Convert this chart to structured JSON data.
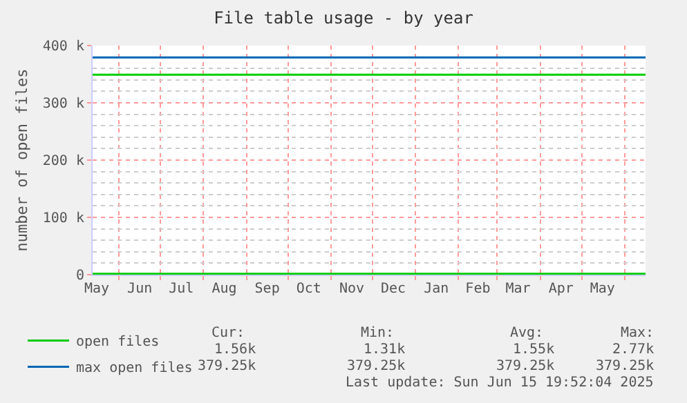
{
  "chart_data": {
    "type": "line",
    "title": "File table usage - by year",
    "ylabel": "number of open files",
    "xlim": [
      "2024-05-13",
      "2025-06-16"
    ],
    "xticks": [
      {
        "value": "2024-05-16",
        "label": "May"
      },
      {
        "value": "2024-06-01",
        "label": null
      },
      {
        "value": "2024-06-16",
        "label": "Jun"
      },
      {
        "value": "2024-07-01",
        "label": null
      },
      {
        "value": "2024-07-16",
        "label": "Jul"
      },
      {
        "value": "2024-08-01",
        "label": null
      },
      {
        "value": "2024-08-16",
        "label": "Aug"
      },
      {
        "value": "2024-09-01",
        "label": null
      },
      {
        "value": "2024-09-16",
        "label": "Sep"
      },
      {
        "value": "2024-10-01",
        "label": null
      },
      {
        "value": "2024-10-16",
        "label": "Oct"
      },
      {
        "value": "2024-11-01",
        "label": null
      },
      {
        "value": "2024-11-16",
        "label": "Nov"
      },
      {
        "value": "2024-12-01",
        "label": null
      },
      {
        "value": "2024-12-16",
        "label": "Dec"
      },
      {
        "value": "2025-01-01",
        "label": null
      },
      {
        "value": "2025-01-16",
        "label": "Jan"
      },
      {
        "value": "2025-02-01",
        "label": null
      },
      {
        "value": "2025-02-15",
        "label": "Feb"
      },
      {
        "value": "2025-03-01",
        "label": null
      },
      {
        "value": "2025-03-16",
        "label": "Mar"
      },
      {
        "value": "2025-04-01",
        "label": null
      },
      {
        "value": "2025-04-16",
        "label": "Apr"
      },
      {
        "value": "2025-05-01",
        "label": null
      },
      {
        "value": "2025-05-16",
        "label": "May"
      },
      {
        "value": "2025-06-01",
        "label": null
      }
    ],
    "ylim": [
      0,
      400000
    ],
    "yticks": [
      {
        "value": 0,
        "label": "0"
      },
      {
        "value": 20000,
        "label": null
      },
      {
        "value": 40000,
        "label": null
      },
      {
        "value": 60000,
        "label": null
      },
      {
        "value": 80000,
        "label": null
      },
      {
        "value": 100000,
        "label": "100 k"
      },
      {
        "value": 120000,
        "label": null
      },
      {
        "value": 140000,
        "label": null
      },
      {
        "value": 160000,
        "label": null
      },
      {
        "value": 180000,
        "label": null
      },
      {
        "value": 200000,
        "label": "200 k"
      },
      {
        "value": 220000,
        "label": null
      },
      {
        "value": 240000,
        "label": null
      },
      {
        "value": 260000,
        "label": null
      },
      {
        "value": 280000,
        "label": null
      },
      {
        "value": 300000,
        "label": "300 k"
      },
      {
        "value": 320000,
        "label": null
      },
      {
        "value": 340000,
        "label": null
      },
      {
        "value": 360000,
        "label": null
      },
      {
        "value": 380000,
        "label": null
      },
      {
        "value": 400000,
        "label": "400 k"
      }
    ],
    "grid": true,
    "legend": "bottom left",
    "marker": "none",
    "line_style": "solid",
    "series": [
      {
        "name": "open files",
        "color": "#00cc00",
        "x": [
          "2024-05-13",
          "2025-06-16"
        ],
        "values": [
          1550,
          1560
        ]
      },
      {
        "name": "max open files",
        "color": "#0066b3",
        "x": [
          "2024-05-13",
          "2025-06-16"
        ],
        "values": [
          379250,
          379250
        ]
      }
    ],
    "ref_lines": [
      {
        "axis": "y",
        "value": 349000,
        "label": null,
        "color": "#00cc00"
      }
    ],
    "annotations": [
      "Cur:",
      "Min:",
      "Avg:",
      "Max:",
      "1.56k",
      "1.31k",
      "1.55k",
      "2.77k",
      "379.25k",
      "379.25k",
      "379.25k",
      "379.25k",
      "Last update: Sun Jun 15 19:52:04 2025"
    ]
  }
}
